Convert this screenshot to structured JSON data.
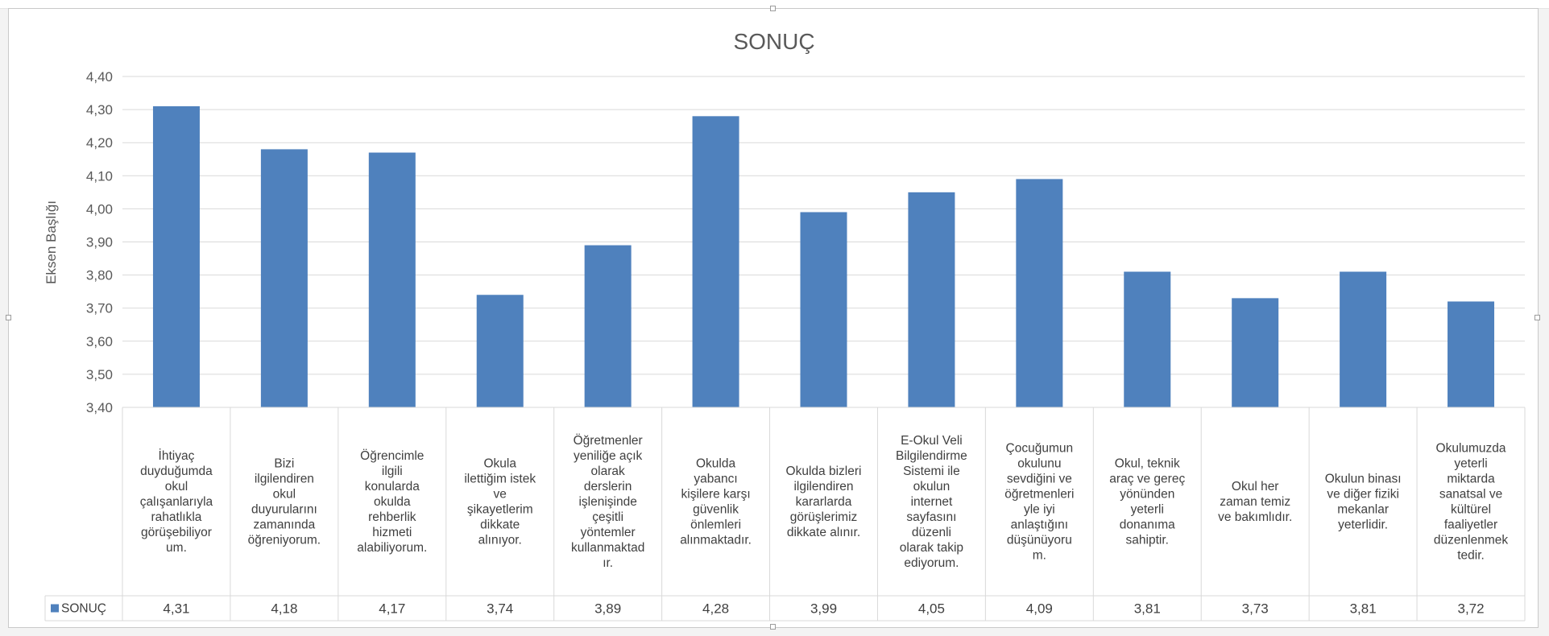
{
  "chart_data": {
    "type": "bar",
    "title": "SONUÇ",
    "ylabel": "Eksen Başlığı",
    "xlabel": "",
    "ylim": [
      3.4,
      4.4
    ],
    "ytick_step": 0.1,
    "y_ticks": [
      "3,40",
      "3,50",
      "3,60",
      "3,70",
      "3,80",
      "3,90",
      "4,00",
      "4,10",
      "4,20",
      "4,30",
      "4,40"
    ],
    "grid": true,
    "legend": "data-table-left",
    "bar_color": "#4f81bd",
    "categories": [
      "İhtiyaç duyduğumda okul çalışanlarıyla rahatlıkla görüşebiliyorum.",
      "Bizi ilgilendiren okul duyurularını zamanında öğreniyorum.",
      "Öğrencimle ilgili konularda okulda rehberlik hizmeti alabiliyorum.",
      "Okula ilettiğim istek ve şikayetlerim dikkate alınıyor.",
      "Öğretmenler yeniliğe açık olarak derslerin işlenişinde çeşitli yöntemler kullanmaktadır.",
      "Okulda yabancı kişilere karşı güvenlik önlemleri alınmaktadır.",
      "Okulda bizleri ilgilendiren kararlarda görüşlerimiz dikkate alınır.",
      "E-Okul Veli Bilgilendirme Sistemi ile okulun internet sayfasını düzenli olarak takip ediyorum.",
      "Çocuğumun okulunu sevdiğini ve öğretmenleriyle iyi anlaştığını düşünüyorum.",
      "Okul, teknik araç ve gereç yönünden yeterli donanıma sahiptir.",
      "Okul her zaman temiz ve bakımlıdır.",
      "Okulun binası ve diğer fiziki mekanlar yeterlidir.",
      "Okulumuzda yeterli miktarda sanatsal ve kültürel faaliyetler düzenlenmektedir."
    ],
    "category_label_lines": [
      [
        "İhtiyaç",
        "duyduğumda",
        "okul",
        "çalışanlarıyla",
        "rahatlıkla",
        "görüşebiliyor",
        "um."
      ],
      [
        "Bizi",
        "ilgilendiren",
        "okul",
        "duyurularını",
        "zamanında",
        "öğreniyorum."
      ],
      [
        "Öğrencimle",
        "ilgili",
        "konularda",
        "okulda",
        "rehberlik",
        "hizmeti",
        "alabiliyorum."
      ],
      [
        "Okula",
        "ilettiğim istek",
        "ve",
        "şikayetlerim",
        "dikkate",
        "alınıyor."
      ],
      [
        "Öğretmenler",
        "yeniliğe açık",
        "olarak",
        "derslerin",
        "işlenişinde",
        "çeşitli",
        "yöntemler",
        "kullanmaktad",
        "ır."
      ],
      [
        "Okulda",
        "yabancı",
        "kişilere karşı",
        "güvenlik",
        "önlemleri",
        "alınmaktadır."
      ],
      [
        "Okulda bizleri",
        "ilgilendiren",
        "kararlarda",
        "görüşlerimiz",
        "dikkate alınır."
      ],
      [
        "E-Okul Veli",
        "Bilgilendirme",
        "Sistemi ile",
        "okulun",
        "internet",
        "sayfasını",
        "düzenli",
        "olarak takip",
        "ediyorum."
      ],
      [
        "Çocuğumun",
        "okulunu",
        "sevdiğini ve",
        "öğretmenleri",
        "yle iyi",
        "anlaştığını",
        "düşünüyoru",
        "m."
      ],
      [
        "Okul, teknik",
        "araç ve gereç",
        "yönünden",
        "yeterli",
        "donanıma",
        "sahiptir."
      ],
      [
        "Okul her",
        "zaman temiz",
        "ve bakımlıdır."
      ],
      [
        "Okulun binası",
        "ve diğer fiziki",
        "mekanlar",
        "yeterlidir."
      ],
      [
        "Okulumuzda",
        "yeterli",
        "miktarda",
        "sanatsal ve",
        "kültürel",
        "faaliyetler",
        "düzenlenmek",
        "tedir."
      ]
    ],
    "series": [
      {
        "name": "SONUÇ",
        "values": [
          4.31,
          4.18,
          4.17,
          3.74,
          3.89,
          4.28,
          3.99,
          4.05,
          4.09,
          3.81,
          3.73,
          3.81,
          3.72
        ],
        "value_labels": [
          "4,31",
          "4,18",
          "4,17",
          "3,74",
          "3,89",
          "4,28",
          "3,99",
          "4,05",
          "4,09",
          "3,81",
          "3,73",
          "3,81",
          "3,72"
        ]
      }
    ]
  }
}
